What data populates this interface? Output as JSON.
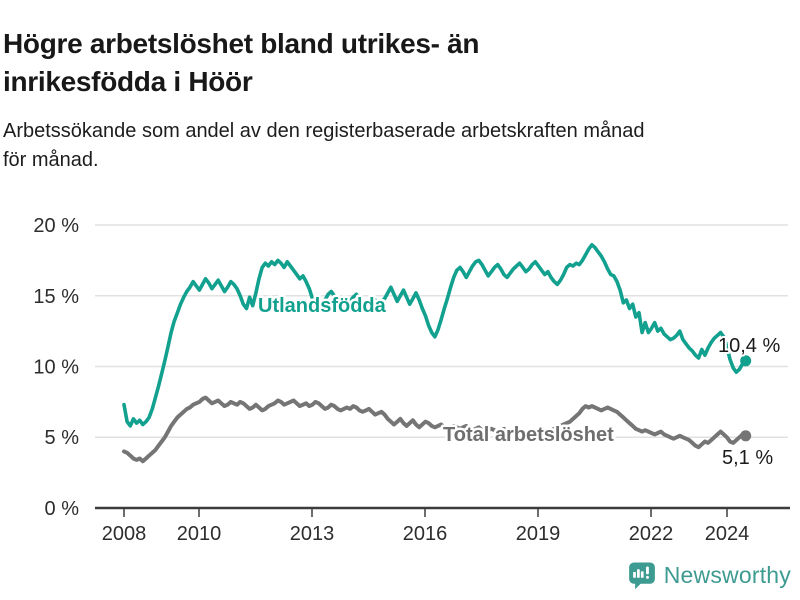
{
  "header": {
    "title": "Högre arbetslöshet bland utrikes- än inrikesfödda i Höör",
    "title_lines": [
      "Högre arbetslöshet bland utrikes- än",
      "inrikesfödda i Höör"
    ],
    "subtitle": "Arbetssökande som andel av den registerbaserade arbetskraften månad för månad.",
    "subtitle_lines": [
      "Arbetssökande som andel av den registerbaserade arbetskraften månad",
      "för månad."
    ]
  },
  "footer": {
    "brand": "Newsworthy",
    "brand_color": "#3e9b91",
    "logo_icon": "bar-chart-speech-bubble-icon"
  },
  "chart_data": {
    "type": "line",
    "title": "Högre arbetslöshet bland utrikes- än inrikesfödda i Höör",
    "subtitle": "Arbetssökande som andel av den registerbaserade arbetskraften månad för månad.",
    "unit": "percent",
    "frequency": "monthly",
    "x_range": {
      "start": "2008-01",
      "end": "2024-07"
    },
    "ylim": [
      0,
      20
    ],
    "grid": "horizontal",
    "legend_position": "inline-labels",
    "y_tick_labels": [
      "20 %",
      "15 %",
      "10 %",
      "5 %",
      "0 %"
    ],
    "y_tick_values": [
      20,
      15,
      10,
      5,
      0
    ],
    "x_tick_labels": [
      "2008",
      "2010",
      "2013",
      "2016",
      "2019",
      "2022",
      "2024"
    ],
    "series": [
      {
        "name": "Utlandsfödda",
        "color": "#12a08f",
        "end_label": "10,4 %",
        "last_value": 10.4,
        "values": [
          7.3,
          6.1,
          5.8,
          6.3,
          6.0,
          6.2,
          5.9,
          6.1,
          6.4,
          7.0,
          7.8,
          8.6,
          9.5,
          10.4,
          11.4,
          12.4,
          13.2,
          13.8,
          14.4,
          14.9,
          15.3,
          15.6,
          16.0,
          15.7,
          15.4,
          15.8,
          16.2,
          15.9,
          15.5,
          15.8,
          16.1,
          15.7,
          15.3,
          15.6,
          16.0,
          15.8,
          15.5,
          15.0,
          14.4,
          14.1,
          14.9,
          14.3,
          15.2,
          16.2,
          17.0,
          17.3,
          17.1,
          17.4,
          17.2,
          17.5,
          17.3,
          17.0,
          17.4,
          17.1,
          16.8,
          16.5,
          16.2,
          16.4,
          16.0,
          15.5,
          14.8,
          14.3,
          14.6,
          14.2,
          14.7,
          15.1,
          15.3,
          15.0,
          14.7,
          14.9,
          14.6,
          14.4,
          14.6,
          14.9,
          15.1,
          14.8,
          14.5,
          14.3,
          14.6,
          14.9,
          14.7,
          14.4,
          14.6,
          14.8,
          15.2,
          15.6,
          15.1,
          14.6,
          15.0,
          15.4,
          14.9,
          14.4,
          14.8,
          15.2,
          14.7,
          14.1,
          13.6,
          12.9,
          12.4,
          12.1,
          12.6,
          13.3,
          14.1,
          14.8,
          15.6,
          16.3,
          16.8,
          17.0,
          16.7,
          16.3,
          16.7,
          17.1,
          17.4,
          17.5,
          17.2,
          16.8,
          16.4,
          16.7,
          17.0,
          17.2,
          16.9,
          16.5,
          16.3,
          16.6,
          16.9,
          17.1,
          17.3,
          17.0,
          16.7,
          16.9,
          17.2,
          17.4,
          17.1,
          16.8,
          16.5,
          16.7,
          16.3,
          16.0,
          15.8,
          16.1,
          16.5,
          17.0,
          17.2,
          17.1,
          17.3,
          17.2,
          17.5,
          17.9,
          18.3,
          18.6,
          18.4,
          18.1,
          17.8,
          17.4,
          16.9,
          16.5,
          16.4,
          16.0,
          15.4,
          14.5,
          14.7,
          14.1,
          14.4,
          13.5,
          13.8,
          12.4,
          13.1,
          12.4,
          12.7,
          13.1,
          12.5,
          12.7,
          12.3,
          12.1,
          11.9,
          12.0,
          12.2,
          12.5,
          11.9,
          11.6,
          11.3,
          11.1,
          10.8,
          10.6,
          11.2,
          10.8,
          11.3,
          11.7,
          12.0,
          12.2,
          12.4,
          12.1,
          11.4,
          10.5,
          9.9,
          9.6,
          9.8,
          10.2,
          10.4
        ]
      },
      {
        "name": "Total arbetslöshet",
        "color": "#757575",
        "end_label": "5,1 %",
        "last_value": 5.1,
        "values": [
          4.0,
          3.9,
          3.7,
          3.5,
          3.4,
          3.5,
          3.3,
          3.5,
          3.7,
          3.9,
          4.1,
          4.4,
          4.7,
          5.0,
          5.4,
          5.8,
          6.1,
          6.4,
          6.6,
          6.8,
          7.0,
          7.1,
          7.3,
          7.4,
          7.5,
          7.7,
          7.8,
          7.6,
          7.4,
          7.5,
          7.6,
          7.4,
          7.2,
          7.3,
          7.5,
          7.4,
          7.3,
          7.5,
          7.4,
          7.2,
          7.0,
          7.1,
          7.3,
          7.1,
          6.9,
          7.0,
          7.2,
          7.3,
          7.4,
          7.6,
          7.5,
          7.3,
          7.4,
          7.5,
          7.6,
          7.4,
          7.2,
          7.3,
          7.4,
          7.2,
          7.3,
          7.5,
          7.4,
          7.2,
          7.0,
          7.1,
          7.3,
          7.2,
          7.0,
          6.9,
          7.0,
          7.1,
          7.0,
          7.2,
          7.1,
          6.9,
          6.8,
          6.9,
          7.0,
          6.8,
          6.6,
          6.7,
          6.8,
          6.6,
          6.3,
          6.1,
          5.9,
          6.1,
          6.3,
          6.0,
          5.8,
          6.0,
          6.2,
          5.9,
          5.7,
          5.9,
          6.1,
          6.0,
          5.8,
          5.7,
          5.8,
          5.9,
          5.7,
          5.6,
          5.7,
          5.8,
          5.7,
          5.6,
          5.7,
          5.8,
          5.6,
          5.5,
          5.6,
          5.7,
          5.5,
          5.4,
          5.5,
          5.6,
          5.5,
          5.4,
          5.5,
          5.6,
          5.4,
          5.3,
          5.4,
          5.5,
          5.3,
          5.2,
          5.3,
          5.4,
          5.5,
          5.4,
          5.5,
          5.6,
          5.5,
          5.4,
          5.5,
          5.6,
          5.7,
          5.8,
          5.9,
          6.0,
          6.1,
          6.3,
          6.5,
          6.7,
          7.0,
          7.2,
          7.1,
          7.2,
          7.1,
          7.0,
          6.9,
          7.0,
          7.1,
          7.0,
          6.9,
          6.8,
          6.6,
          6.4,
          6.2,
          6.0,
          5.8,
          5.6,
          5.5,
          5.4,
          5.5,
          5.4,
          5.3,
          5.2,
          5.3,
          5.4,
          5.2,
          5.1,
          5.0,
          4.9,
          5.0,
          5.1,
          5.0,
          4.9,
          4.8,
          4.6,
          4.4,
          4.3,
          4.5,
          4.7,
          4.6,
          4.8,
          5.0,
          5.2,
          5.4,
          5.2,
          5.0,
          4.7,
          4.6,
          4.8,
          5.0,
          5.2,
          5.1
        ]
      }
    ]
  }
}
